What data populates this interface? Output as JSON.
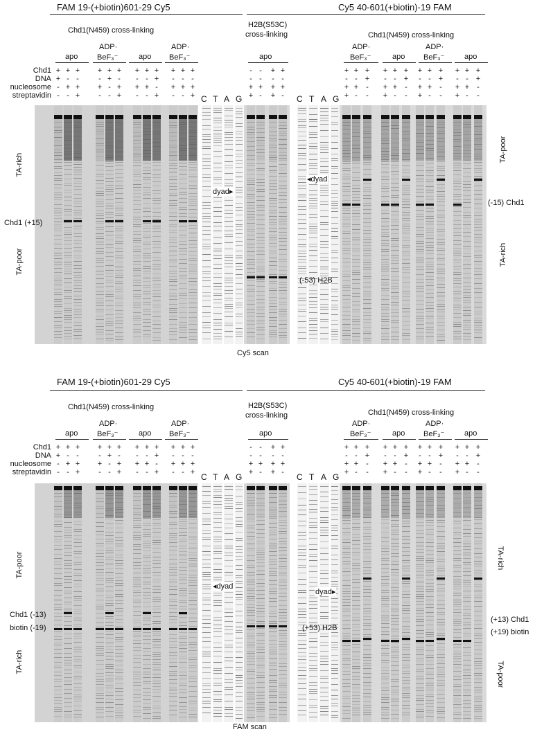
{
  "top": {
    "left_construct": "FAM 19-(+biotin)601-29 Cy5",
    "right_construct": "Cy5 40-601(+biotin)-19 FAM",
    "left_group_title": "Chd1(N459) cross-linking",
    "middle_group_title_1": "H2B(S53C)",
    "middle_group_title_2": "cross-linking",
    "right_group_title": "Chd1(N459) cross-linking",
    "cond_apo": "apo",
    "cond_adp_1": "ADP·",
    "cond_adp_2": "BeF₃⁻",
    "row_labels": [
      "Chd1",
      "DNA",
      "nucleosome",
      "streptavidin"
    ],
    "left_rows": [
      [
        "+",
        "+",
        "+",
        "+",
        "+",
        "+",
        "+",
        "+",
        "+",
        "+",
        "+",
        "+"
      ],
      [
        "+",
        "-",
        "-",
        "-",
        "+",
        "-",
        "-",
        "-",
        "+",
        "-",
        "-",
        "-"
      ],
      [
        "-",
        "+",
        "+",
        "+",
        "-",
        "+",
        "+",
        "+",
        "-",
        "+",
        "+",
        "+"
      ],
      [
        "-",
        "-",
        "+",
        "-",
        "-",
        "+",
        "-",
        "-",
        "+",
        "-",
        "-",
        "+"
      ]
    ],
    "middle_rows": [
      [
        "-",
        "-",
        "+",
        "+"
      ],
      [
        "-",
        "-",
        "-",
        "-"
      ],
      [
        "+",
        "+",
        "+",
        "+"
      ],
      [
        "+",
        "-",
        "+",
        "-"
      ]
    ],
    "right_rows": [
      [
        "+",
        "+",
        "+",
        "+",
        "+",
        "+",
        "+",
        "+",
        "+",
        "+",
        "+",
        "+"
      ],
      [
        "-",
        "-",
        "+",
        "-",
        "-",
        "+",
        "-",
        "-",
        "+",
        "-",
        "-",
        "+"
      ],
      [
        "+",
        "+",
        "-",
        "+",
        "+",
        "-",
        "+",
        "+",
        "-",
        "+",
        "+",
        "-"
      ],
      [
        "+",
        "-",
        "-",
        "+",
        "-",
        "-",
        "+",
        "-",
        "-",
        "+",
        "-",
        "-"
      ]
    ],
    "seq_lanes": [
      "C",
      "T",
      "A",
      "G"
    ],
    "side_left_top": "TA-rich",
    "side_left_bottom": "TA-poor",
    "side_right_top": "TA-poor",
    "side_right_bottom": "TA-rich",
    "band_left": "Chd1 (+15)",
    "band_mid": "(-53) H2B",
    "band_right": "(-15) Chd1",
    "dyad_a": "dyad",
    "dyad_b": "dyad",
    "scan": "Cy5 scan"
  },
  "bottom": {
    "left_construct": "FAM 19-(+biotin)601-29 Cy5",
    "right_construct": "Cy5 40-601(+biotin)-19 FAM",
    "left_group_title": "Chd1(N459) cross-linking",
    "middle_group_title_1": "H2B(S53C)",
    "middle_group_title_2": "cross-linking",
    "right_group_title": "Chd1(N459) cross-linking",
    "cond_apo": "apo",
    "cond_adp_1": "ADP·",
    "cond_adp_2": "BeF₃⁻",
    "row_labels": [
      "Chd1",
      "DNA",
      "nucleosome",
      "streptavidin"
    ],
    "left_rows": [
      [
        "+",
        "+",
        "+",
        "+",
        "+",
        "+",
        "+",
        "+",
        "+",
        "+",
        "+",
        "+"
      ],
      [
        "+",
        "-",
        "-",
        "-",
        "+",
        "-",
        "-",
        "-",
        "+",
        "-",
        "-",
        "-"
      ],
      [
        "-",
        "+",
        "+",
        "+",
        "-",
        "+",
        "+",
        "+",
        "-",
        "+",
        "+",
        "+"
      ],
      [
        "-",
        "-",
        "+",
        "-",
        "-",
        "+",
        "-",
        "-",
        "+",
        "-",
        "-",
        "+"
      ]
    ],
    "middle_rows": [
      [
        "-",
        "-",
        "+",
        "+"
      ],
      [
        "-",
        "-",
        "-",
        "-"
      ],
      [
        "+",
        "+",
        "+",
        "+"
      ],
      [
        "+",
        "-",
        "+",
        "-"
      ]
    ],
    "right_rows": [
      [
        "+",
        "+",
        "+",
        "+",
        "+",
        "+",
        "+",
        "+",
        "+",
        "+",
        "+",
        "+"
      ],
      [
        "-",
        "-",
        "+",
        "-",
        "-",
        "+",
        "-",
        "-",
        "+",
        "-",
        "-",
        "+"
      ],
      [
        "+",
        "+",
        "-",
        "+",
        "+",
        "-",
        "+",
        "+",
        "-",
        "+",
        "+",
        "-"
      ],
      [
        "+",
        "-",
        "-",
        "+",
        "-",
        "-",
        "+",
        "-",
        "-",
        "+",
        "-",
        "-"
      ]
    ],
    "seq_lanes": [
      "C",
      "T",
      "A",
      "G"
    ],
    "side_left_top": "TA-poor",
    "side_left_bottom": "TA-rich",
    "side_right_top": "TA-rich",
    "side_right_bottom": "TA-poor",
    "band_left_1": "Chd1 (-13)",
    "band_left_2": "biotin (-19)",
    "band_mid": "(+53) H2B",
    "band_right_1": "(+13) Chd1",
    "band_right_2": "(+19) biotin",
    "dyad_a": "dyad",
    "dyad_b": "dyad",
    "scan": "FAM scan"
  },
  "colors": {
    "gel_bg": "#d6d6d6",
    "band": "#111111",
    "text": "#111111"
  }
}
